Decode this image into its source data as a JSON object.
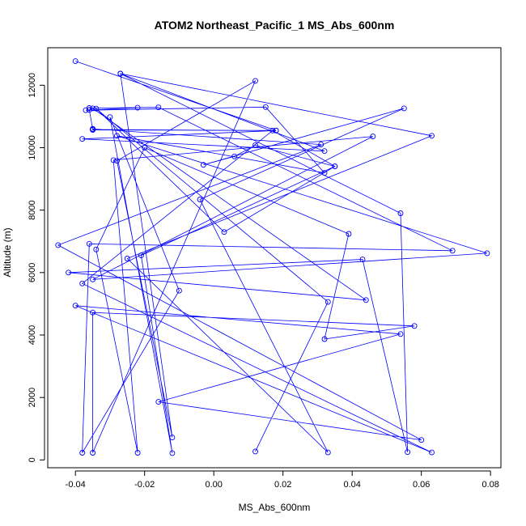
{
  "chart_data": {
    "type": "line",
    "title": "ATOM2 Northeast_Pacific_1 MS_Abs_600nm",
    "xlabel": "MS_Abs_600nm",
    "ylabel": "Altitude (m)",
    "xlim": [
      -0.048,
      0.083
    ],
    "ylim": [
      -250,
      13200
    ],
    "xticks": [
      -0.04,
      -0.02,
      0.0,
      0.02,
      0.04,
      0.06,
      0.08
    ],
    "xtick_labels": [
      "-0.04",
      "-0.02",
      "0.00",
      "0.02",
      "0.04",
      "0.06",
      "0.08"
    ],
    "yticks": [
      0,
      2000,
      4000,
      6000,
      8000,
      10000,
      12000
    ],
    "ytick_labels": [
      "0",
      "2000",
      "4000",
      "6000",
      "8000",
      "10000",
      "12000"
    ],
    "series_color": "#0000ff",
    "markers": "open-circle",
    "points": [
      [
        -0.04,
        12770
      ],
      [
        0.018,
        10550
      ],
      [
        -0.038,
        10280
      ],
      [
        0.032,
        9890
      ],
      [
        -0.027,
        12370
      ],
      [
        0.054,
        7900
      ],
      [
        0.056,
        250
      ],
      [
        0.043,
        6420
      ],
      [
        -0.042,
        6000
      ],
      [
        0.044,
        5120
      ],
      [
        -0.035,
        11260
      ],
      [
        -0.036,
        11210
      ],
      [
        -0.035,
        10600
      ],
      [
        -0.035,
        10580
      ],
      [
        0.018,
        10550
      ],
      [
        -0.035,
        10570
      ],
      [
        -0.035,
        10600
      ],
      [
        0.031,
        10100
      ],
      [
        -0.045,
        6880
      ],
      [
        0.06,
        640
      ],
      [
        -0.016,
        1860
      ],
      [
        0.054,
        4030
      ],
      [
        -0.04,
        4940
      ],
      [
        0.063,
        240
      ],
      [
        -0.038,
        5650
      ],
      [
        0.017,
        10550
      ],
      [
        0.035,
        9400
      ],
      [
        -0.021,
        6550
      ],
      [
        -0.012,
        220
      ],
      [
        -0.03,
        10980
      ],
      [
        -0.01,
        5420
      ],
      [
        -0.038,
        230
      ],
      [
        -0.036,
        6920
      ],
      [
        0.069,
        6700
      ],
      [
        -0.016,
        11290
      ],
      [
        -0.036,
        11270
      ],
      [
        -0.022,
        11280
      ],
      [
        -0.037,
        11200
      ],
      [
        0.015,
        11300
      ],
      [
        0.032,
        9190
      ],
      [
        -0.028,
        10380
      ],
      [
        0.079,
        6620
      ],
      [
        -0.035,
        5780
      ],
      [
        0.046,
        10360
      ],
      [
        -0.029,
        9600
      ],
      [
        -0.022,
        230
      ],
      [
        -0.034,
        6740
      ],
      [
        -0.02,
        10000
      ],
      [
        0.039,
        7240
      ],
      [
        0.032,
        3870
      ],
      [
        0.058,
        4290
      ],
      [
        -0.035,
        4720
      ],
      [
        -0.035,
        230
      ],
      [
        0.012,
        12140
      ],
      [
        -0.028,
        9580
      ],
      [
        -0.012,
        720
      ],
      [
        -0.027,
        12370
      ],
      [
        0.063,
        10380
      ],
      [
        -0.025,
        6450
      ],
      [
        0.033,
        240
      ],
      [
        -0.004,
        8340
      ],
      [
        0.055,
        11260
      ],
      [
        -0.003,
        9450
      ],
      [
        0.006,
        9720
      ],
      [
        0.012,
        10080
      ],
      [
        0.035,
        9400
      ],
      [
        0.003,
        7300
      ],
      [
        -0.034,
        11250
      ],
      [
        0.033,
        5060
      ],
      [
        0.012,
        270
      ]
    ]
  }
}
